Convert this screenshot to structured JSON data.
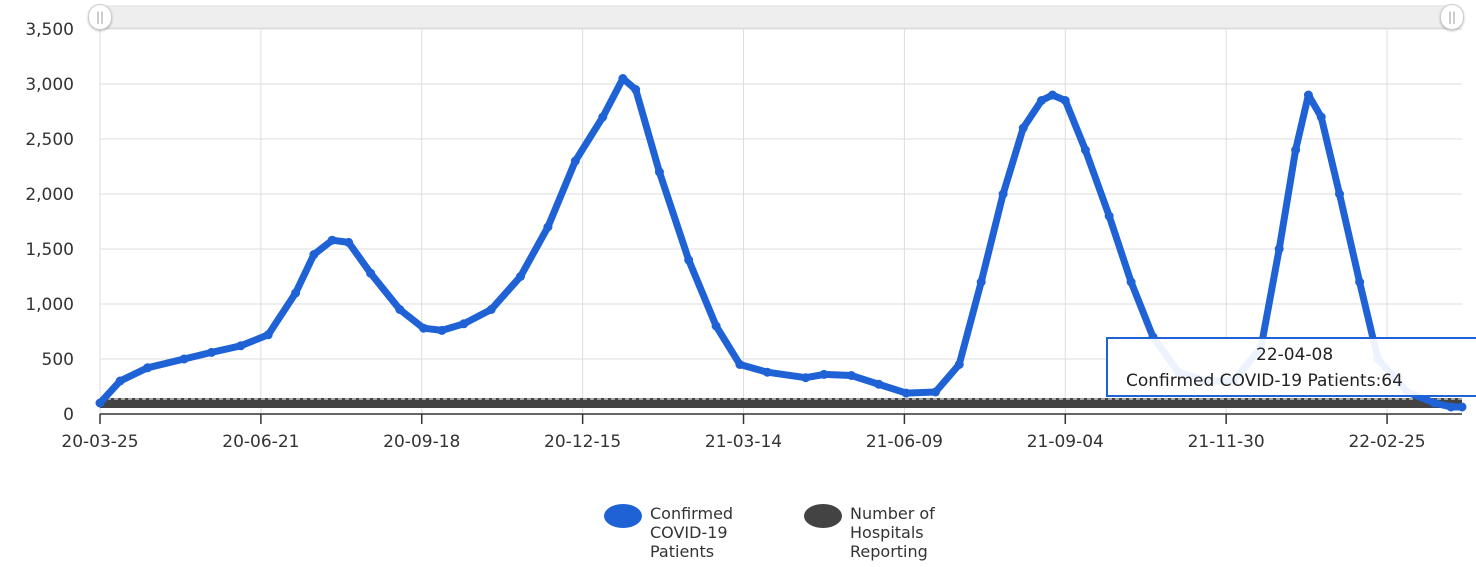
{
  "chart_data": {
    "type": "line",
    "x_axis_type": "date",
    "x_start": "2020-03-25",
    "x_end": "2022-04-09",
    "ylim": [
      0,
      3500
    ],
    "y_ticks": [
      "0",
      "500",
      "1,000",
      "1,500",
      "2,000",
      "2,500",
      "3,000",
      "3,500"
    ],
    "x_tick_labels": [
      "20-03-25",
      "20-06-21",
      "20-09-18",
      "20-12-15",
      "21-03-14",
      "21-06-09",
      "21-09-04",
      "21-11-30",
      "22-02-25"
    ],
    "grid": true,
    "legend_position": "bottom",
    "series": [
      {
        "name": "Confirmed COVID-19 Patients",
        "color": "#1e62d6",
        "points": [
          [
            "2020-03-25",
            100
          ],
          [
            "2020-04-05",
            300
          ],
          [
            "2020-04-20",
            420
          ],
          [
            "2020-05-10",
            500
          ],
          [
            "2020-05-25",
            560
          ],
          [
            "2020-06-10",
            620
          ],
          [
            "2020-06-25",
            720
          ],
          [
            "2020-07-10",
            1100
          ],
          [
            "2020-07-20",
            1450
          ],
          [
            "2020-07-30",
            1580
          ],
          [
            "2020-08-08",
            1560
          ],
          [
            "2020-08-20",
            1280
          ],
          [
            "2020-09-05",
            950
          ],
          [
            "2020-09-18",
            780
          ],
          [
            "2020-09-28",
            760
          ],
          [
            "2020-10-10",
            820
          ],
          [
            "2020-10-25",
            950
          ],
          [
            "2020-11-10",
            1250
          ],
          [
            "2020-11-25",
            1700
          ],
          [
            "2020-12-10",
            2300
          ],
          [
            "2020-12-25",
            2700
          ],
          [
            "2021-01-05",
            3050
          ],
          [
            "2021-01-12",
            2950
          ],
          [
            "2021-01-25",
            2200
          ],
          [
            "2021-02-10",
            1400
          ],
          [
            "2021-02-25",
            800
          ],
          [
            "2021-03-10",
            450
          ],
          [
            "2021-03-25",
            380
          ],
          [
            "2021-04-15",
            330
          ],
          [
            "2021-04-25",
            360
          ],
          [
            "2021-05-10",
            350
          ],
          [
            "2021-05-25",
            270
          ],
          [
            "2021-06-09",
            190
          ],
          [
            "2021-06-25",
            200
          ],
          [
            "2021-07-08",
            450
          ],
          [
            "2021-07-20",
            1200
          ],
          [
            "2021-08-01",
            2000
          ],
          [
            "2021-08-12",
            2600
          ],
          [
            "2021-08-22",
            2850
          ],
          [
            "2021-08-28",
            2900
          ],
          [
            "2021-09-04",
            2850
          ],
          [
            "2021-09-15",
            2400
          ],
          [
            "2021-09-28",
            1800
          ],
          [
            "2021-10-10",
            1200
          ],
          [
            "2021-10-22",
            700
          ],
          [
            "2021-11-05",
            380
          ],
          [
            "2021-11-20",
            300
          ],
          [
            "2021-12-05",
            300
          ],
          [
            "2021-12-20",
            600
          ],
          [
            "2021-12-30",
            1500
          ],
          [
            "2022-01-08",
            2400
          ],
          [
            "2022-01-15",
            2900
          ],
          [
            "2022-01-22",
            2700
          ],
          [
            "2022-02-01",
            2000
          ],
          [
            "2022-02-12",
            1200
          ],
          [
            "2022-02-22",
            500
          ],
          [
            "2022-03-10",
            200
          ],
          [
            "2022-03-25",
            100
          ],
          [
            "2022-04-03",
            64
          ],
          [
            "2022-04-09",
            64
          ]
        ]
      },
      {
        "name": "Number of Hospitals Reporting",
        "color": "#434343",
        "points": [
          [
            "2020-03-25",
            100
          ],
          [
            "2022-04-09",
            100
          ]
        ]
      }
    ]
  },
  "legend": {
    "items": [
      {
        "label": "Confirmed\nCOVID-19\nPatients",
        "color": "#1e62d6"
      },
      {
        "label": "Number of\nHospitals\nReporting",
        "color": "#434343"
      }
    ]
  },
  "tooltip": {
    "date": "22-04-08",
    "text": "Confirmed COVID-19 Patients:64"
  }
}
